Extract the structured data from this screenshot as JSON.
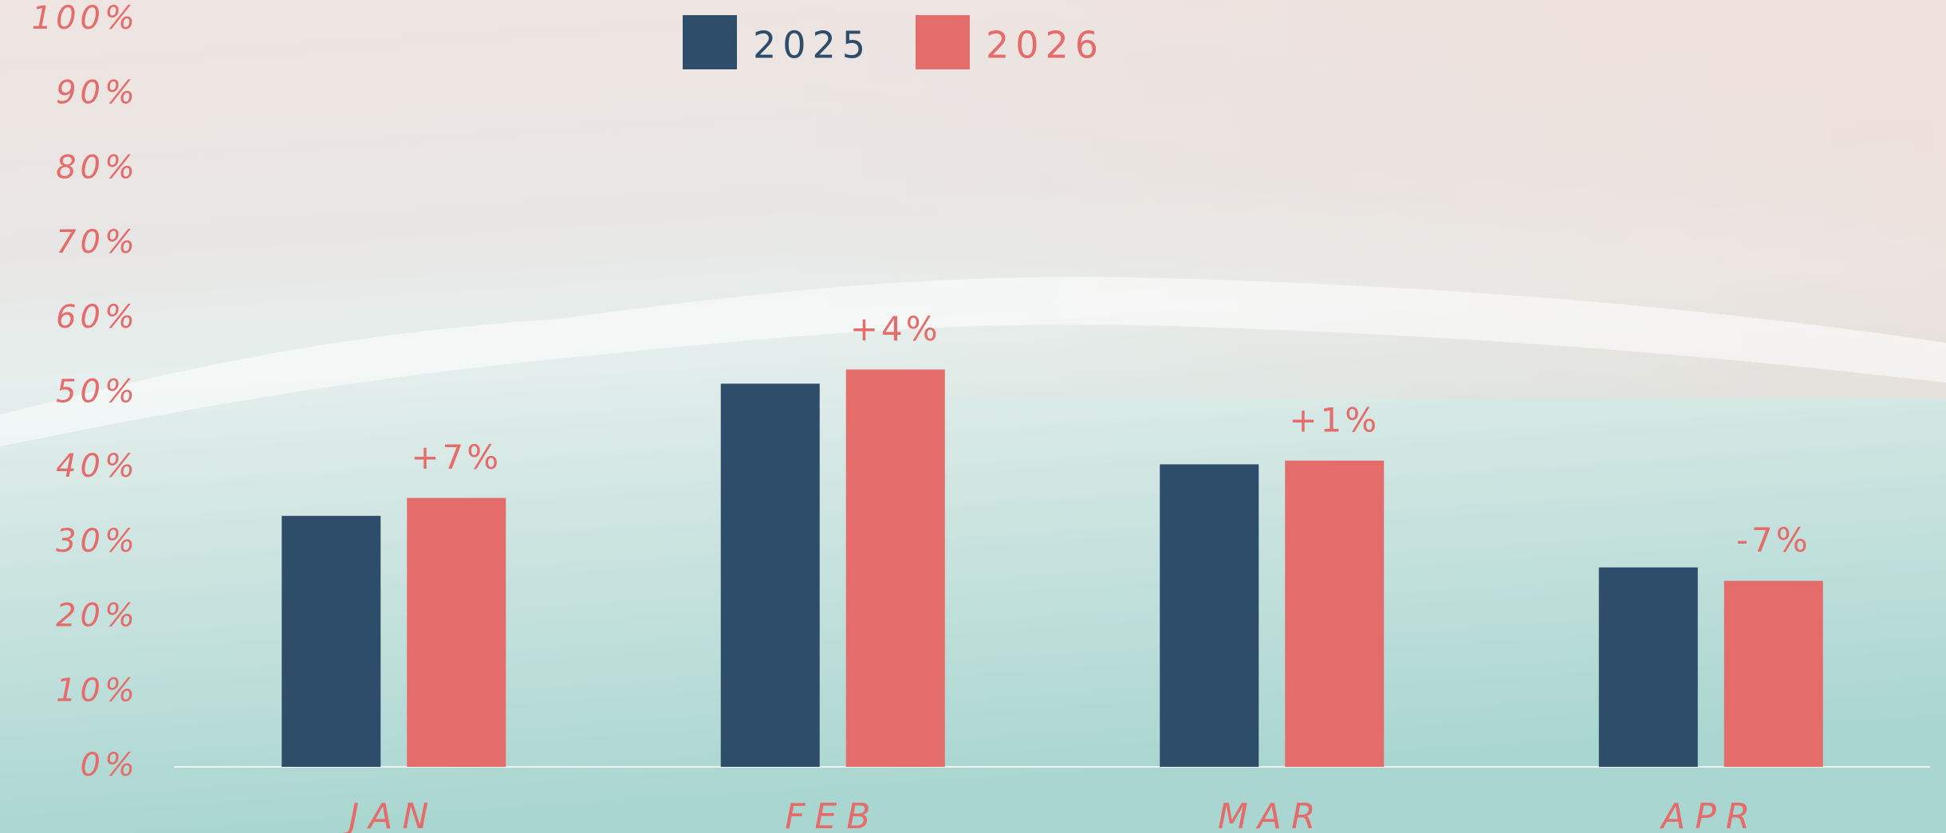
{
  "chart_data": {
    "type": "bar",
    "categories": [
      "JAN",
      "FEB",
      "MAR",
      "APR"
    ],
    "series": [
      {
        "name": "2025",
        "color": "#2e4d6b",
        "values": [
          33.6,
          51.3,
          40.5,
          26.7
        ]
      },
      {
        "name": "2026",
        "color": "#e46c6b",
        "values": [
          36.0,
          53.2,
          41.0,
          24.9
        ]
      }
    ],
    "annotations": [
      "+7%",
      "+4%",
      "+1%",
      "-7%"
    ],
    "ylim": [
      0,
      100
    ],
    "yticks": [
      {
        "value": 0,
        "label": "0%"
      },
      {
        "value": 10,
        "label": "10%"
      },
      {
        "value": 20,
        "label": "20%"
      },
      {
        "value": 30,
        "label": "30%"
      },
      {
        "value": 40,
        "label": "40%"
      },
      {
        "value": 50,
        "label": "50%"
      },
      {
        "value": 60,
        "label": "60%"
      },
      {
        "value": 70,
        "label": "70%"
      },
      {
        "value": 80,
        "label": "80%"
      },
      {
        "value": 90,
        "label": "90%"
      },
      {
        "value": 100,
        "label": "100%"
      }
    ],
    "grid": false
  }
}
